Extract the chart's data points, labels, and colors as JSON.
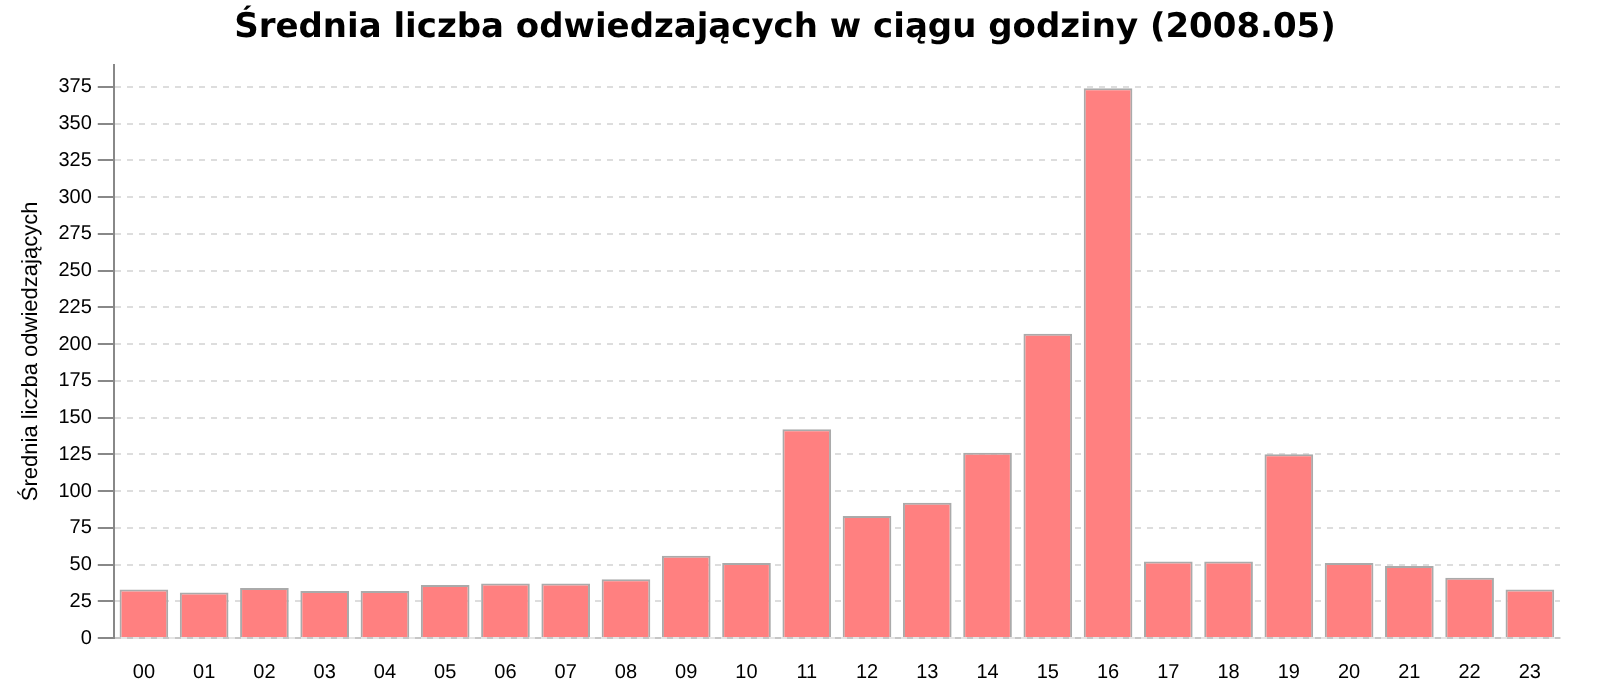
{
  "chart_data": {
    "type": "bar",
    "title": "Średnia liczba odwiedzających w ciągu godziny (2008.05)",
    "ylabel": "Średnia liczba odwiedzających",
    "categories": [
      "00",
      "01",
      "02",
      "03",
      "04",
      "05",
      "06",
      "07",
      "08",
      "09",
      "10",
      "11",
      "12",
      "13",
      "14",
      "15",
      "16",
      "17",
      "18",
      "19",
      "20",
      "21",
      "22",
      "23"
    ],
    "values": [
      33,
      31,
      34,
      32,
      32,
      36,
      37,
      37,
      40,
      56,
      51,
      142,
      83,
      92,
      126,
      207,
      374,
      52,
      52,
      125,
      51,
      49,
      41,
      33
    ],
    "color": "#ff8080",
    "ylim": [
      0,
      390
    ],
    "yticks": [
      0,
      25,
      50,
      75,
      100,
      125,
      150,
      175,
      200,
      225,
      250,
      275,
      300,
      325,
      350,
      375
    ],
    "grid": "y"
  }
}
